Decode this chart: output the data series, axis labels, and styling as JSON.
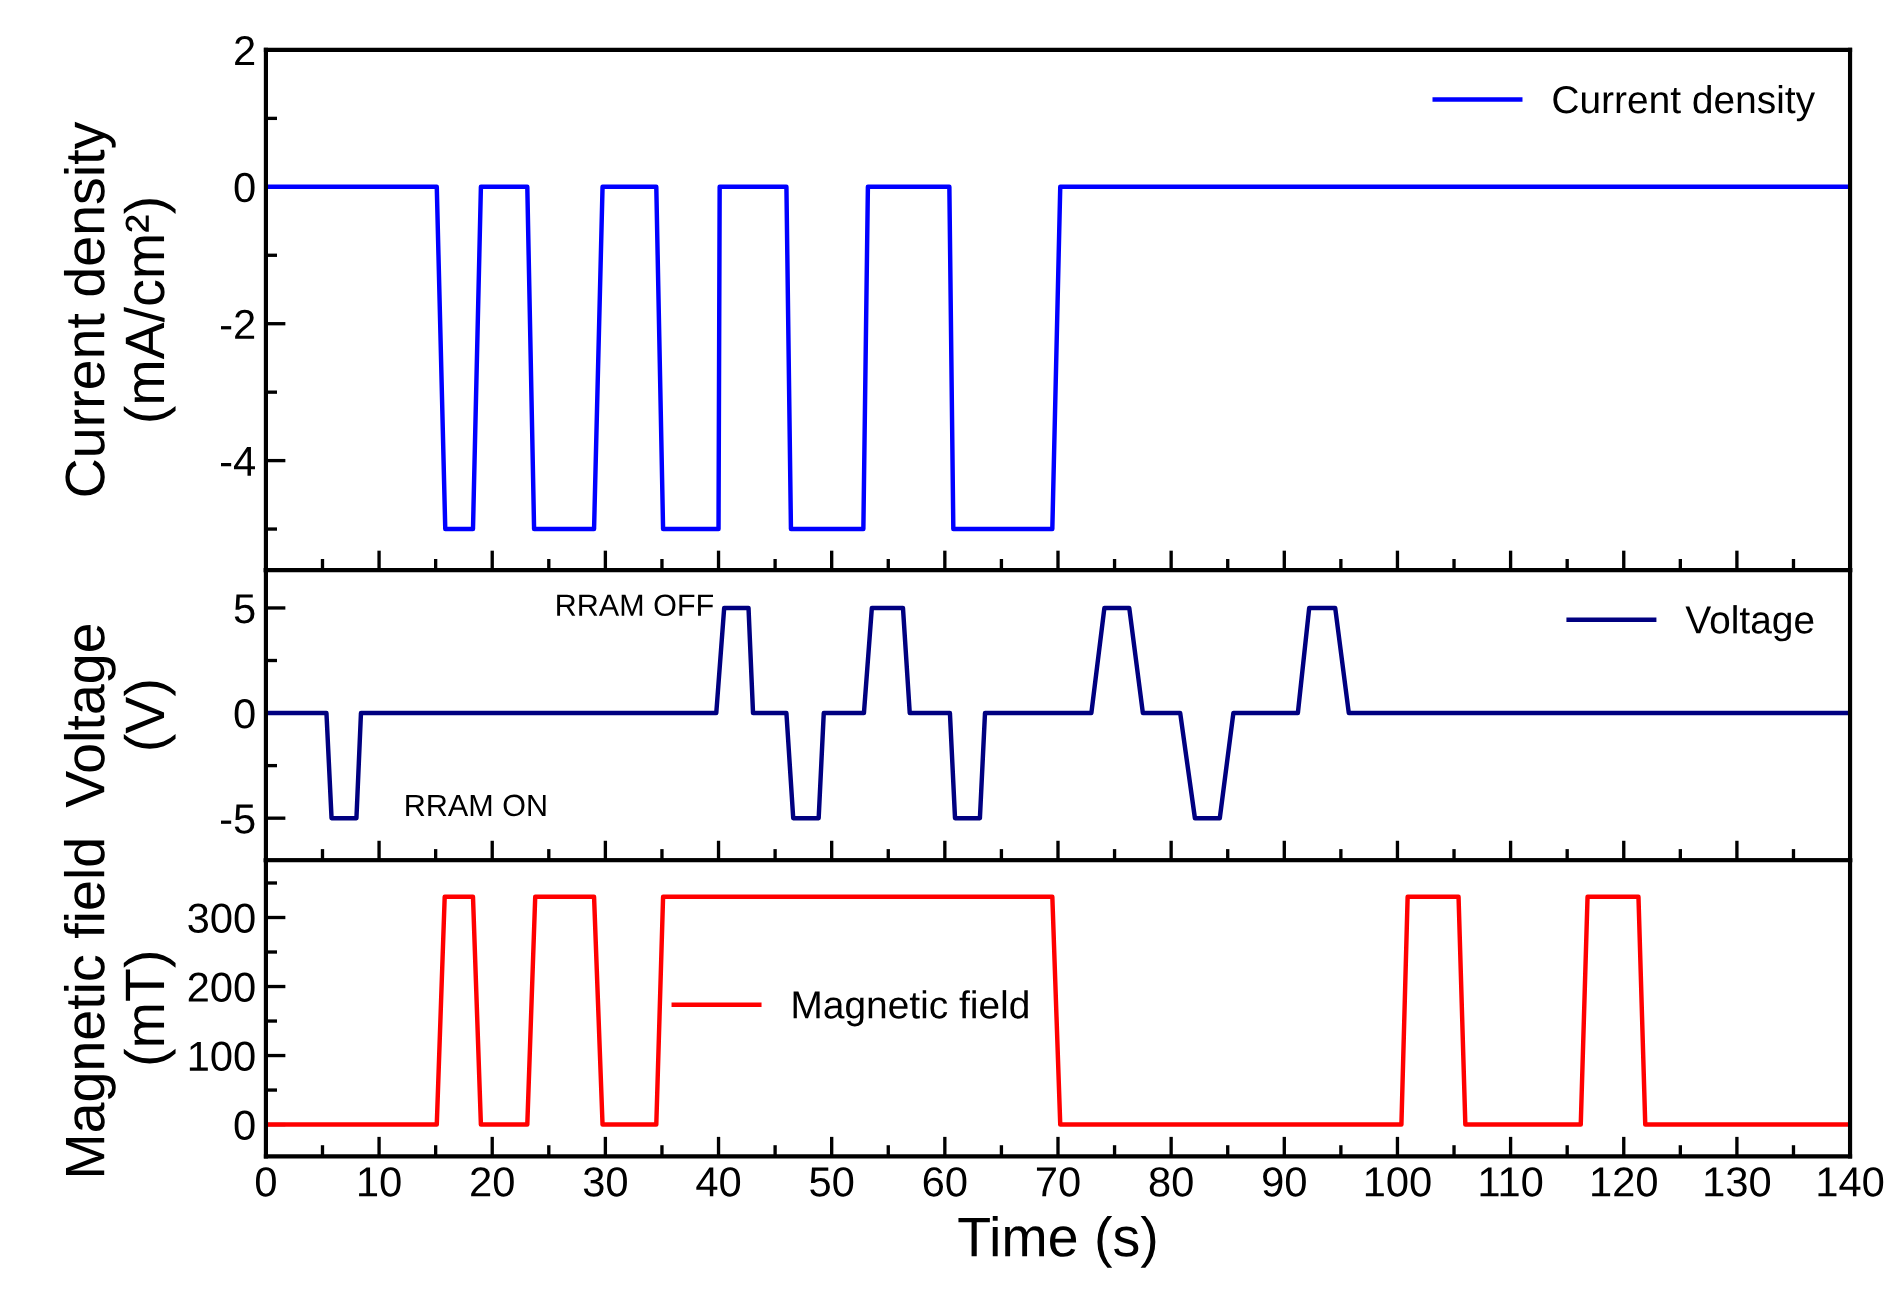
{
  "chart_data": [
    {
      "type": "line",
      "ylabel": "Current density\n(mA/cm²)",
      "xlim": [
        0,
        140
      ],
      "xticks": [
        0,
        10,
        20,
        30,
        40,
        50,
        60,
        70,
        80,
        90,
        100,
        110,
        120,
        130,
        140
      ],
      "ylim": [
        -5.6,
        2
      ],
      "yticks": [
        -4,
        -2,
        0,
        2
      ],
      "tick_labels": "y",
      "legend": "top right",
      "grid": false,
      "series": [
        {
          "name": "Current density",
          "color": "#0000ff",
          "x": [
            0,
            15.1,
            15.85,
            18.3,
            19.0,
            23.1,
            23.7,
            29.0,
            29.75,
            34.5,
            35.1,
            40.0,
            40.1,
            46.0,
            46.4,
            52.8,
            53.2,
            60.4,
            60.75,
            69.5,
            70.2,
            140
          ],
          "values": [
            0,
            0,
            -5,
            -5,
            0,
            0,
            -5,
            -5,
            0,
            0,
            -5,
            -5,
            0,
            0,
            -5,
            -5,
            0,
            0,
            -5,
            -5,
            0,
            0
          ]
        }
      ]
    },
    {
      "type": "line",
      "ylabel": "Voltage\n(V)",
      "xlim": [
        0,
        140
      ],
      "xticks": [
        0,
        10,
        20,
        30,
        40,
        50,
        60,
        70,
        80,
        90,
        100,
        110,
        120,
        130,
        140
      ],
      "ylim": [
        -7,
        6.8
      ],
      "yticks": [
        -5,
        0,
        5
      ],
      "tick_labels": "y",
      "legend": "top right",
      "grid": false,
      "annotations": [
        "RRAM OFF",
        "RRAM ON"
      ],
      "series": [
        {
          "name": "Voltage",
          "color": "#000080",
          "x": [
            0,
            5.35,
            5.8,
            8.0,
            8.4,
            39.8,
            40.5,
            42.65,
            43.05,
            46.0,
            46.6,
            48.85,
            49.3,
            52.85,
            53.55,
            56.3,
            56.9,
            60.45,
            60.9,
            63.1,
            63.55,
            72.95,
            74.1,
            76.3,
            77.5,
            80.8,
            82.1,
            84.3,
            85.5,
            91.2,
            92.2,
            94.5,
            95.7,
            140
          ],
          "values": [
            0,
            0,
            -5,
            -5,
            0,
            0,
            5,
            5,
            0,
            0,
            -5,
            -5,
            0,
            0,
            5,
            5,
            0,
            0,
            -5,
            -5,
            0,
            0,
            5,
            5,
            0,
            0,
            -5,
            -5,
            0,
            0,
            5,
            5,
            0,
            0
          ]
        }
      ]
    },
    {
      "type": "line",
      "xlabel": "Time (s)",
      "ylabel": "Magnetic field\n(mT)",
      "xlim": [
        0,
        140
      ],
      "xticks": [
        0,
        10,
        20,
        30,
        40,
        50,
        60,
        70,
        80,
        90,
        100,
        110,
        120,
        130,
        140
      ],
      "ylim": [
        -46,
        383
      ],
      "yticks": [
        0,
        100,
        200,
        300
      ],
      "legend": "center",
      "grid": false,
      "series": [
        {
          "name": "Magnetic field",
          "color": "#ff0000",
          "x": [
            0,
            15.1,
            15.8,
            18.3,
            19.0,
            23.1,
            23.8,
            29.0,
            29.75,
            34.5,
            35.1,
            69.5,
            70.2,
            100.35,
            100.9,
            105.4,
            106.0,
            116.2,
            116.8,
            121.3,
            121.9,
            140
          ],
          "values": [
            0,
            0,
            330,
            330,
            0,
            0,
            330,
            330,
            0,
            0,
            330,
            330,
            0,
            0,
            330,
            330,
            0,
            0,
            330,
            330,
            0,
            0
          ]
        }
      ]
    }
  ]
}
